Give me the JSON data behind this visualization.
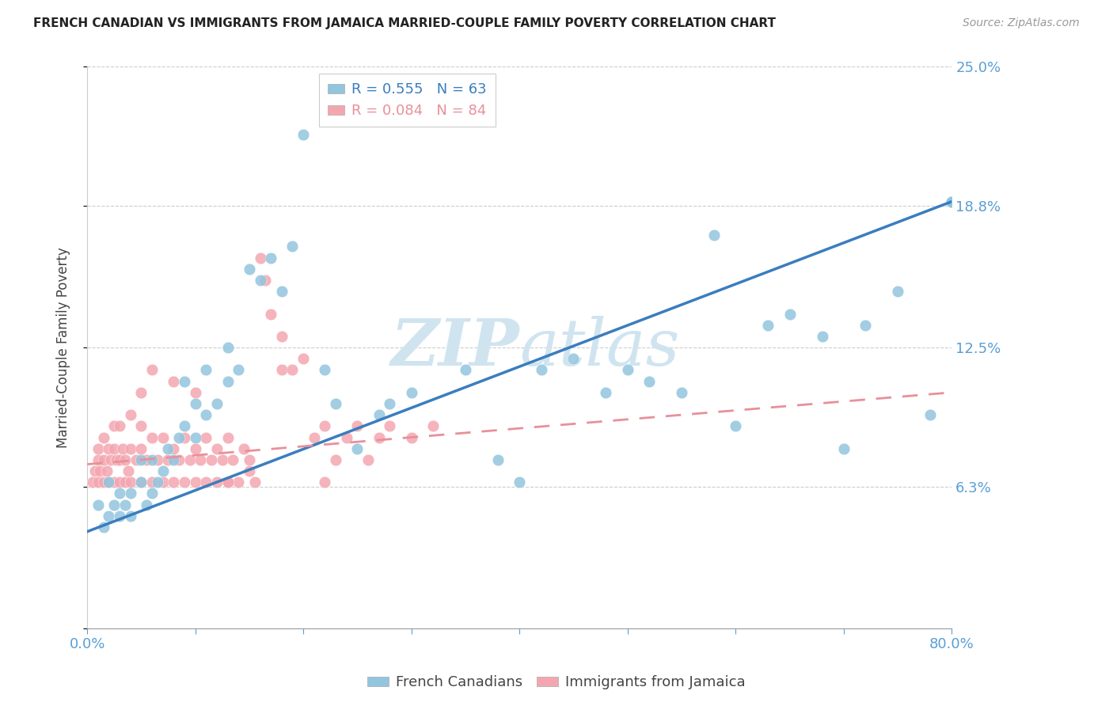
{
  "title": "FRENCH CANADIAN VS IMMIGRANTS FROM JAMAICA MARRIED-COUPLE FAMILY POVERTY CORRELATION CHART",
  "source": "Source: ZipAtlas.com",
  "ylabel": "Married-Couple Family Poverty",
  "xlim": [
    0,
    0.8
  ],
  "ylim": [
    0,
    0.25
  ],
  "legend_blue_R": "R = 0.555",
  "legend_blue_N": "N = 63",
  "legend_pink_R": "R = 0.084",
  "legend_pink_N": "N = 84",
  "blue_color": "#92c5de",
  "pink_color": "#f4a6b0",
  "blue_line_color": "#3a7dbf",
  "pink_line_color": "#e8909a",
  "watermark_color": "#d0e4f0",
  "blue_scatter_x": [
    0.01,
    0.015,
    0.02,
    0.02,
    0.025,
    0.03,
    0.03,
    0.035,
    0.04,
    0.04,
    0.05,
    0.05,
    0.055,
    0.06,
    0.06,
    0.065,
    0.07,
    0.075,
    0.08,
    0.085,
    0.09,
    0.09,
    0.1,
    0.1,
    0.11,
    0.11,
    0.12,
    0.13,
    0.13,
    0.14,
    0.15,
    0.16,
    0.17,
    0.18,
    0.19,
    0.2,
    0.22,
    0.23,
    0.25,
    0.27,
    0.28,
    0.3,
    0.35,
    0.38,
    0.4,
    0.42,
    0.45,
    0.48,
    0.5,
    0.52,
    0.55,
    0.58,
    0.6,
    0.63,
    0.65,
    0.68,
    0.7,
    0.72,
    0.75,
    0.78,
    0.8,
    0.8,
    0.8
  ],
  "blue_scatter_y": [
    0.055,
    0.045,
    0.05,
    0.065,
    0.055,
    0.06,
    0.05,
    0.055,
    0.06,
    0.05,
    0.065,
    0.075,
    0.055,
    0.06,
    0.075,
    0.065,
    0.07,
    0.08,
    0.075,
    0.085,
    0.09,
    0.11,
    0.085,
    0.1,
    0.095,
    0.115,
    0.1,
    0.11,
    0.125,
    0.115,
    0.16,
    0.155,
    0.165,
    0.15,
    0.17,
    0.22,
    0.115,
    0.1,
    0.08,
    0.095,
    0.1,
    0.105,
    0.115,
    0.075,
    0.065,
    0.115,
    0.12,
    0.105,
    0.115,
    0.11,
    0.105,
    0.175,
    0.09,
    0.135,
    0.14,
    0.13,
    0.08,
    0.135,
    0.15,
    0.095,
    0.19,
    0.19,
    0.19
  ],
  "pink_scatter_x": [
    0.005,
    0.007,
    0.01,
    0.01,
    0.01,
    0.012,
    0.015,
    0.015,
    0.015,
    0.018,
    0.02,
    0.02,
    0.022,
    0.025,
    0.025,
    0.025,
    0.027,
    0.03,
    0.03,
    0.03,
    0.033,
    0.035,
    0.035,
    0.038,
    0.04,
    0.04,
    0.04,
    0.045,
    0.05,
    0.05,
    0.05,
    0.055,
    0.06,
    0.06,
    0.065,
    0.07,
    0.07,
    0.075,
    0.08,
    0.08,
    0.085,
    0.09,
    0.09,
    0.095,
    0.1,
    0.1,
    0.105,
    0.11,
    0.11,
    0.115,
    0.12,
    0.12,
    0.125,
    0.13,
    0.13,
    0.135,
    0.14,
    0.145,
    0.15,
    0.155,
    0.16,
    0.165,
    0.17,
    0.18,
    0.19,
    0.2,
    0.21,
    0.22,
    0.23,
    0.24,
    0.25,
    0.26,
    0.27,
    0.28,
    0.3,
    0.32,
    0.05,
    0.06,
    0.08,
    0.1,
    0.13,
    0.15,
    0.18,
    0.22
  ],
  "pink_scatter_y": [
    0.065,
    0.07,
    0.065,
    0.075,
    0.08,
    0.07,
    0.065,
    0.075,
    0.085,
    0.07,
    0.065,
    0.08,
    0.075,
    0.065,
    0.08,
    0.09,
    0.075,
    0.065,
    0.075,
    0.09,
    0.08,
    0.065,
    0.075,
    0.07,
    0.065,
    0.08,
    0.095,
    0.075,
    0.065,
    0.08,
    0.09,
    0.075,
    0.065,
    0.085,
    0.075,
    0.065,
    0.085,
    0.075,
    0.065,
    0.08,
    0.075,
    0.065,
    0.085,
    0.075,
    0.065,
    0.08,
    0.075,
    0.065,
    0.085,
    0.075,
    0.065,
    0.08,
    0.075,
    0.065,
    0.085,
    0.075,
    0.065,
    0.08,
    0.075,
    0.065,
    0.165,
    0.155,
    0.14,
    0.115,
    0.115,
    0.12,
    0.085,
    0.09,
    0.075,
    0.085,
    0.09,
    0.075,
    0.085,
    0.09,
    0.085,
    0.09,
    0.105,
    0.115,
    0.11,
    0.105,
    0.065,
    0.07,
    0.13,
    0.065
  ],
  "blue_line_x0": 0.0,
  "blue_line_y0": 0.043,
  "blue_line_x1": 0.8,
  "blue_line_y1": 0.19,
  "pink_line_x0": 0.0,
  "pink_line_y0": 0.073,
  "pink_line_x1": 0.8,
  "pink_line_y1": 0.105
}
